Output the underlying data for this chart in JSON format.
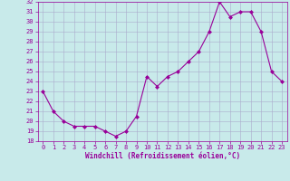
{
  "x": [
    0,
    1,
    2,
    3,
    4,
    5,
    6,
    7,
    8,
    9,
    10,
    11,
    12,
    13,
    14,
    15,
    16,
    17,
    18,
    19,
    20,
    21,
    22,
    23
  ],
  "y": [
    23,
    21,
    20,
    19.5,
    19.5,
    19.5,
    19,
    18.5,
    19,
    20.5,
    24.5,
    23.5,
    24.5,
    25,
    26,
    27,
    29,
    32,
    30.5,
    31,
    31,
    29,
    25,
    24
  ],
  "line_color": "#990099",
  "marker": "D",
  "marker_size": 2,
  "bg_color": "#c8eaea",
  "grid_color": "#aaaacc",
  "xlabel": "Windchill (Refroidissement éolien,°C)",
  "xlabel_color": "#990099",
  "tick_color": "#990099",
  "ylim": [
    18,
    32
  ],
  "xlim": [
    -0.5,
    23.5
  ],
  "yticks": [
    18,
    19,
    20,
    21,
    22,
    23,
    24,
    25,
    26,
    27,
    28,
    29,
    30,
    31,
    32
  ],
  "xticks": [
    0,
    1,
    2,
    3,
    4,
    5,
    6,
    7,
    8,
    9,
    10,
    11,
    12,
    13,
    14,
    15,
    16,
    17,
    18,
    19,
    20,
    21,
    22,
    23
  ],
  "tick_fontsize": 5,
  "xlabel_fontsize": 5.5
}
